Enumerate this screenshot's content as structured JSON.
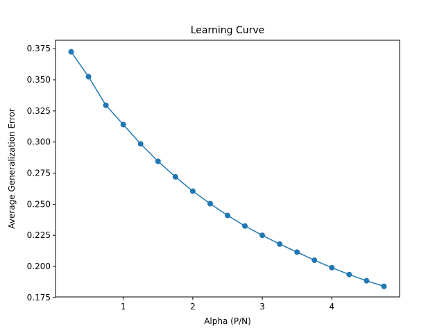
{
  "chart_data": {
    "type": "line",
    "title": "Learning Curve",
    "xlabel": "Alpha (P/N)",
    "ylabel": "Average Generalization Error",
    "xlim": [
      0.025,
      4.975
    ],
    "ylim": [
      0.1755,
      0.3818
    ],
    "xticks": [
      1,
      2,
      3,
      4
    ],
    "xtick_labels": [
      "1",
      "2",
      "3",
      "4"
    ],
    "yticks": [
      0.175,
      0.2,
      0.225,
      0.25,
      0.275,
      0.3,
      0.325,
      0.35,
      0.375
    ],
    "ytick_labels": [
      "0.175",
      "0.200",
      "0.225",
      "0.250",
      "0.275",
      "0.300",
      "0.325",
      "0.350",
      "0.375"
    ],
    "grid": false,
    "legend": "none",
    "color": "#1f77b4",
    "marker": "circle",
    "series": [
      {
        "x": [
          0.25,
          0.5,
          0.75,
          1.0,
          1.25,
          1.5,
          1.75,
          2.0,
          2.25,
          2.5,
          2.75,
          3.0,
          3.25,
          3.5,
          3.75,
          4.0,
          4.25,
          4.5,
          4.75
        ],
        "values": [
          0.3725,
          0.3525,
          0.3295,
          0.314,
          0.2985,
          0.2845,
          0.272,
          0.2605,
          0.2505,
          0.241,
          0.2325,
          0.225,
          0.218,
          0.2115,
          0.205,
          0.199,
          0.1935,
          0.1885,
          0.184
        ]
      }
    ]
  }
}
